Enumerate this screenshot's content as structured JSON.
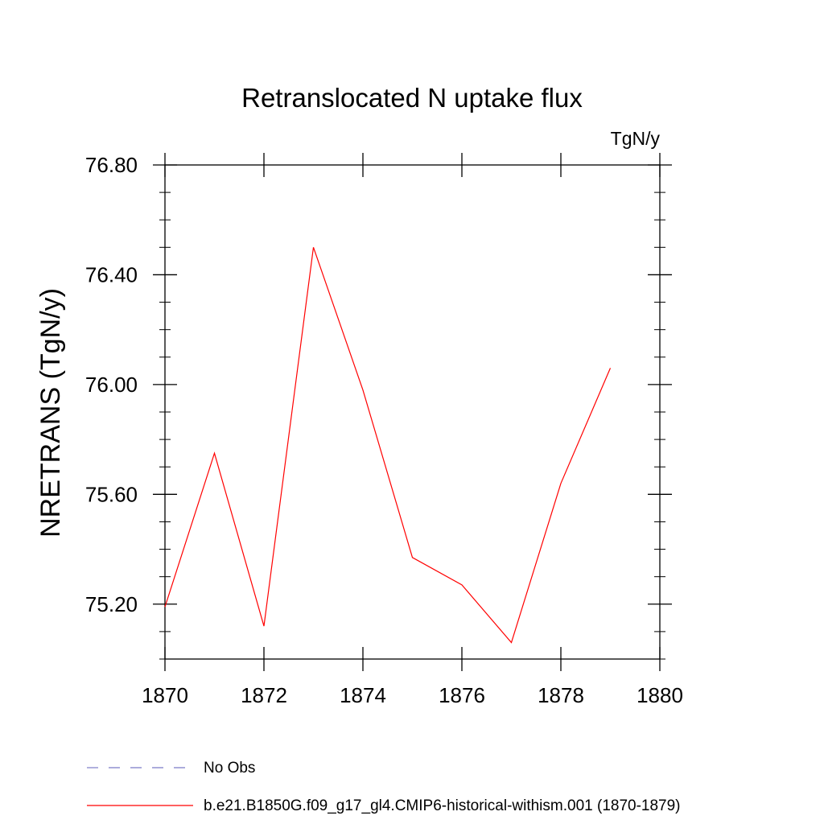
{
  "chart_data": {
    "type": "line",
    "title": "Retranslocated N uptake flux",
    "units": "TgN/y",
    "xlabel": "",
    "ylabel": "NRETRANS  (TgN/y)",
    "xlim": [
      1870,
      1880
    ],
    "ylim": [
      75.0,
      76.8
    ],
    "xticks": [
      "1870",
      "1872",
      "1874",
      "1876",
      "1878",
      "1880"
    ],
    "xtick_values": [
      1870,
      1872,
      1874,
      1876,
      1878,
      1880
    ],
    "yticks": [
      "75.20",
      "75.60",
      "76.00",
      "76.40",
      "76.80"
    ],
    "ytick_values": [
      75.2,
      75.6,
      76.0,
      76.4,
      76.8
    ],
    "grid": false,
    "legend_position": "bottom",
    "series": [
      {
        "name": "b.e21.B1850G.f09_g17_gl4.CMIP6-historical-withism.001 (1870-1879)",
        "color": "#ff0000",
        "style": "solid",
        "x": [
          1870,
          1871,
          1872,
          1873,
          1874,
          1875,
          1876,
          1877,
          1878,
          1879
        ],
        "y": [
          75.19,
          75.75,
          75.12,
          76.5,
          75.98,
          75.37,
          75.27,
          75.06,
          75.64,
          76.06
        ]
      }
    ],
    "legend": [
      {
        "label": "No Obs",
        "color": "#7b7bc8",
        "style": "dashed"
      },
      {
        "label": "b.e21.B1850G.f09_g17_gl4.CMIP6-historical-withism.001 (1870-1879)",
        "color": "#ff0000",
        "style": "solid"
      }
    ]
  }
}
